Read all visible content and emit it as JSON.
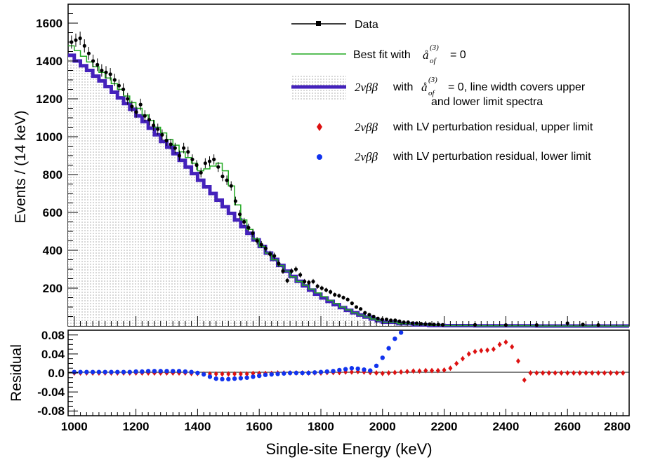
{
  "chart_data": [
    {
      "type": "line",
      "panel": "main",
      "ylabel": "Events / (14 keV)",
      "xlim": [
        980,
        2800
      ],
      "ylim": [
        0,
        1700
      ],
      "yticks": [
        "200",
        "400",
        "600",
        "800",
        "1000",
        "1200",
        "1400",
        "1600"
      ],
      "grid": false,
      "legend_position": "top-right",
      "legend": {
        "data_label": "Data",
        "best_fit_prefix": "Best fit with",
        "best_fit_suffix": "= 0",
        "twonu_main": "with",
        "twonu_suffix": "= 0, line width covers upper",
        "twonu_line2": "and lower limit spectra",
        "upper_text": "with LV perturbation residual, upper limit",
        "lower_text": "with LV perturbation residual, lower limit",
        "math_2nubb": "2νββ",
        "math_a": "å",
        "math_sub": "of",
        "math_sup": "(3)"
      },
      "series": [
        {
          "name": "Data",
          "style": "points-with-errors",
          "color": "#000000",
          "x": [
            991,
            1005,
            1019,
            1033,
            1047,
            1061,
            1075,
            1089,
            1103,
            1117,
            1131,
            1145,
            1159,
            1173,
            1187,
            1201,
            1215,
            1229,
            1243,
            1257,
            1271,
            1285,
            1299,
            1313,
            1327,
            1341,
            1355,
            1369,
            1383,
            1397,
            1411,
            1425,
            1439,
            1453,
            1467,
            1481,
            1495,
            1509,
            1523,
            1537,
            1551,
            1565,
            1579,
            1593,
            1607,
            1621,
            1635,
            1649,
            1663,
            1677,
            1691,
            1705,
            1719,
            1733,
            1747,
            1761,
            1775,
            1789,
            1803,
            1817,
            1831,
            1845,
            1859,
            1873,
            1887,
            1901,
            1915,
            1929,
            1943,
            1957,
            1971,
            1985,
            1999,
            2013,
            2027,
            2041,
            2055,
            2069,
            2083,
            2097,
            2111,
            2125,
            2139,
            2153,
            2167,
            2181,
            2195,
            2300,
            2400,
            2500,
            2600,
            2650,
            2700
          ],
          "y": [
            1500,
            1510,
            1520,
            1480,
            1440,
            1400,
            1380,
            1350,
            1340,
            1330,
            1300,
            1270,
            1250,
            1200,
            1160,
            1130,
            1170,
            1110,
            1090,
            1060,
            1040,
            1010,
            980,
            960,
            940,
            900,
            940,
            920,
            880,
            850,
            810,
            860,
            870,
            880,
            840,
            790,
            770,
            740,
            660,
            590,
            550,
            520,
            490,
            450,
            430,
            410,
            380,
            370,
            330,
            290,
            240,
            290,
            300,
            270,
            235,
            230,
            235,
            210,
            200,
            190,
            180,
            165,
            160,
            150,
            140,
            120,
            100,
            90,
            70,
            60,
            50,
            40,
            35,
            35,
            30,
            30,
            25,
            20,
            20,
            15,
            15,
            12,
            10,
            10,
            8,
            8,
            6,
            6,
            5,
            5,
            15,
            8,
            5
          ]
        },
        {
          "name": "Best fit",
          "style": "step",
          "color": "#22aa22",
          "x": [
            980,
            1000,
            1020,
            1040,
            1060,
            1080,
            1100,
            1120,
            1140,
            1160,
            1180,
            1200,
            1220,
            1240,
            1260,
            1280,
            1300,
            1320,
            1340,
            1360,
            1380,
            1400,
            1420,
            1440,
            1460,
            1480,
            1500,
            1520,
            1540,
            1560,
            1580,
            1600,
            1620,
            1640,
            1660,
            1680,
            1700,
            1720,
            1740,
            1760,
            1780,
            1800,
            1820,
            1840,
            1860,
            1880,
            1900,
            1920,
            1940,
            1960,
            1980,
            2000,
            2050,
            2100,
            2150,
            2200,
            2300,
            2400,
            2500,
            2600,
            2700,
            2800
          ],
          "y": [
            1480,
            1455,
            1425,
            1395,
            1370,
            1340,
            1310,
            1280,
            1250,
            1215,
            1180,
            1150,
            1115,
            1085,
            1050,
            1020,
            985,
            955,
            920,
            890,
            860,
            820,
            830,
            845,
            860,
            820,
            740,
            640,
            560,
            510,
            460,
            420,
            385,
            350,
            320,
            290,
            260,
            235,
            215,
            195,
            175,
            155,
            135,
            118,
            100,
            85,
            70,
            58,
            47,
            37,
            28,
            20,
            12,
            6,
            3,
            2,
            1,
            1,
            0,
            0,
            0,
            0
          ]
        },
        {
          "name": "2nubb",
          "style": "thick-step",
          "color": "#4422bb",
          "x": [
            980,
            1000,
            1020,
            1040,
            1060,
            1080,
            1100,
            1120,
            1140,
            1160,
            1180,
            1200,
            1220,
            1240,
            1260,
            1280,
            1300,
            1320,
            1340,
            1360,
            1380,
            1400,
            1420,
            1440,
            1460,
            1480,
            1500,
            1520,
            1540,
            1560,
            1580,
            1600,
            1620,
            1640,
            1660,
            1680,
            1700,
            1720,
            1740,
            1760,
            1780,
            1800,
            1820,
            1840,
            1860,
            1880,
            1900,
            1920,
            1940,
            1960,
            1980,
            2000,
            2050,
            2100,
            2150,
            2200,
            2300,
            2400,
            2500,
            2600,
            2700,
            2800
          ],
          "y": [
            1430,
            1400,
            1375,
            1350,
            1320,
            1295,
            1265,
            1235,
            1205,
            1175,
            1145,
            1110,
            1080,
            1045,
            1010,
            975,
            945,
            910,
            875,
            840,
            805,
            770,
            735,
            700,
            665,
            630,
            595,
            560,
            525,
            490,
            455,
            420,
            385,
            352,
            320,
            290,
            262,
            236,
            212,
            190,
            168,
            148,
            130,
            113,
            97,
            83,
            70,
            58,
            47,
            37,
            28,
            20,
            12,
            6,
            3,
            2,
            1,
            1,
            0,
            0,
            0,
            0
          ]
        }
      ]
    },
    {
      "type": "scatter",
      "panel": "residual",
      "xlabel": "Single-site Energy (keV)",
      "ylabel": "Residual",
      "xlim": [
        980,
        2800
      ],
      "ylim": [
        -0.09,
        0.09
      ],
      "xticks": [
        "1000",
        "1200",
        "1400",
        "1600",
        "1800",
        "2000",
        "2200",
        "2400",
        "2600",
        "2800"
      ],
      "yticks": [
        "-0.08",
        "-0.04",
        "0.0",
        "0.04",
        "0.08"
      ],
      "grid": false,
      "series": [
        {
          "name": "upper limit",
          "marker": "diamond",
          "color": "#dd1111",
          "x": [
            1000,
            1020,
            1040,
            1060,
            1080,
            1100,
            1120,
            1140,
            1160,
            1180,
            1200,
            1220,
            1240,
            1260,
            1280,
            1300,
            1320,
            1340,
            1360,
            1380,
            1400,
            1420,
            1440,
            1460,
            1480,
            1500,
            1520,
            1540,
            1560,
            1580,
            1600,
            1620,
            1640,
            1660,
            1680,
            1700,
            1720,
            1740,
            1760,
            1780,
            1800,
            1820,
            1840,
            1860,
            1880,
            1900,
            1920,
            1940,
            1960,
            1980,
            2000,
            2020,
            2040,
            2060,
            2080,
            2100,
            2120,
            2140,
            2160,
            2180,
            2200,
            2220,
            2240,
            2260,
            2280,
            2300,
            2320,
            2340,
            2360,
            2380,
            2400,
            2420,
            2440,
            2460,
            2480,
            2500,
            2520,
            2540,
            2560,
            2580,
            2600,
            2620,
            2640,
            2660,
            2680,
            2700,
            2720,
            2740,
            2760,
            2780
          ],
          "y": [
            0.0,
            0.0,
            0.0,
            0.0,
            0.0,
            0.0,
            0.0,
            0.0,
            0.0,
            0.0,
            0.0,
            0.0,
            0.0,
            0.0,
            0.0,
            0.0,
            0.0,
            0.0,
            0.0,
            -0.001,
            -0.001,
            -0.002,
            -0.002,
            -0.002,
            -0.002,
            -0.002,
            -0.002,
            -0.002,
            -0.002,
            -0.001,
            -0.001,
            -0.001,
            -0.001,
            0.0,
            0.0,
            0.0,
            0.0,
            0.0,
            0.0,
            0.0,
            0.0,
            0.001,
            0.001,
            0.001,
            0.002,
            0.002,
            0.003,
            0.002,
            0.001,
            0.0,
            -0.001,
            0.0,
            0.001,
            0.002,
            0.003,
            0.004,
            0.004,
            0.005,
            0.005,
            0.005,
            0.006,
            0.01,
            0.02,
            0.03,
            0.04,
            0.045,
            0.047,
            0.048,
            0.05,
            0.06,
            0.065,
            0.055,
            0.025,
            -0.015,
            0.0,
            0.0,
            0.0,
            0.0,
            0.0,
            0.0,
            0.0,
            0.0,
            0.0,
            0.0,
            0.0,
            0.0,
            0.0,
            0.0,
            0.0,
            0.0
          ]
        },
        {
          "name": "lower limit",
          "marker": "circle",
          "color": "#1133ee",
          "x": [
            1000,
            1020,
            1040,
            1060,
            1080,
            1100,
            1120,
            1140,
            1160,
            1180,
            1200,
            1220,
            1240,
            1260,
            1280,
            1300,
            1320,
            1340,
            1360,
            1380,
            1400,
            1420,
            1440,
            1460,
            1480,
            1500,
            1520,
            1540,
            1560,
            1580,
            1600,
            1620,
            1640,
            1660,
            1680,
            1700,
            1720,
            1740,
            1760,
            1780,
            1800,
            1820,
            1840,
            1860,
            1880,
            1900,
            1920,
            1940,
            1960,
            1980,
            2000,
            2020,
            2040,
            2060
          ],
          "y": [
            0.002,
            0.002,
            0.002,
            0.002,
            0.002,
            0.002,
            0.002,
            0.002,
            0.002,
            0.002,
            0.003,
            0.003,
            0.004,
            0.004,
            0.004,
            0.004,
            0.004,
            0.004,
            0.003,
            0.002,
            0.0,
            -0.003,
            -0.008,
            -0.012,
            -0.013,
            -0.013,
            -0.012,
            -0.011,
            -0.01,
            -0.008,
            -0.006,
            -0.004,
            -0.003,
            -0.002,
            -0.001,
            0.0,
            0.0,
            0.0,
            0.0,
            0.001,
            0.002,
            0.003,
            0.004,
            0.006,
            0.008,
            0.01,
            0.009,
            0.007,
            0.005,
            0.015,
            0.032,
            0.052,
            0.072,
            0.085
          ]
        }
      ]
    }
  ]
}
